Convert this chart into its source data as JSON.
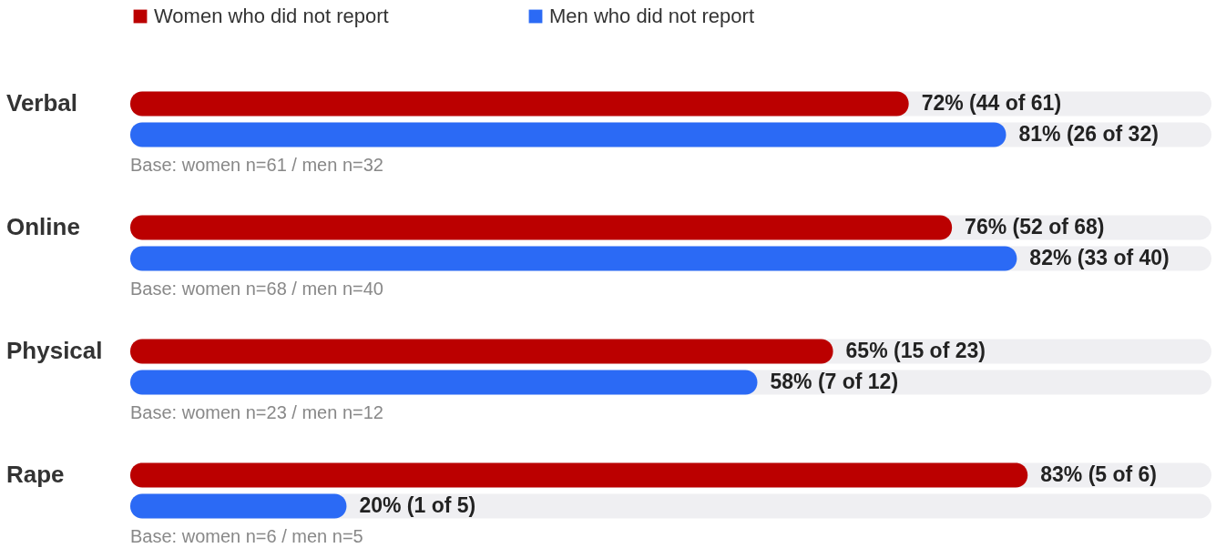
{
  "chart_data": {
    "type": "bar",
    "orientation": "horizontal",
    "categories": [
      "Verbal",
      "Online",
      "Physical",
      "Rape"
    ],
    "series": [
      {
        "name": "Women who did not report",
        "color": "#bb0000",
        "values": [
          72,
          76,
          65,
          83
        ],
        "value_labels": [
          "72% (44 of 61)",
          "76% (52 of 68)",
          "65% (15 of 23)",
          "83% (5 of 6)"
        ]
      },
      {
        "name": "Men who did not report",
        "color": "#2b6af5",
        "values": [
          81,
          82,
          58,
          20
        ],
        "value_labels": [
          "81% (26 of 32)",
          "82% (33 of 40)",
          "58% (7 of 12)",
          "20% (1 of 5)"
        ]
      }
    ],
    "xlim": [
      0,
      100
    ],
    "legend": "top left",
    "tick_labels": "y",
    "annotations": [
      "Base: women n=61 / men n=32",
      "Base: women n=68 / men n=40",
      "Base: women n=23 / men n=12",
      "Base: women n=6 / men n=5"
    ]
  }
}
